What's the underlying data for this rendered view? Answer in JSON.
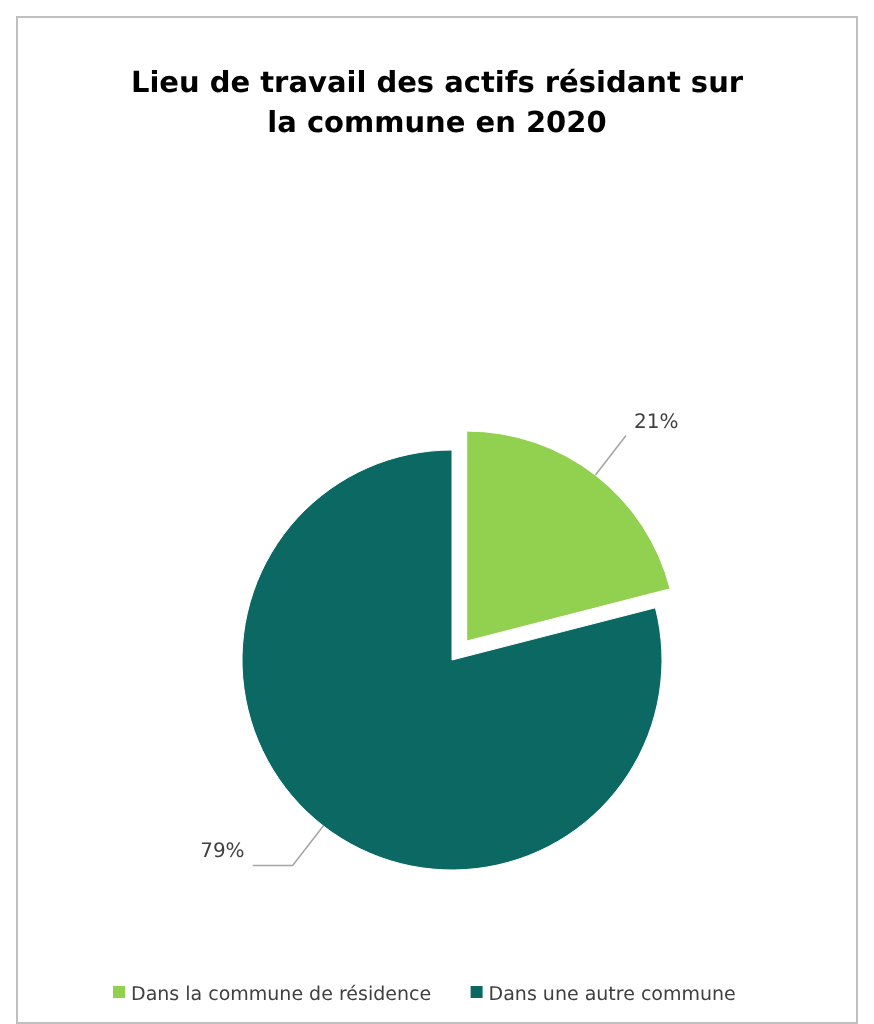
{
  "chart_data": {
    "type": "pie",
    "title": "Lieu de travail des actifs résidant sur la commune en 2020",
    "categories": [
      "Dans la commune de résidence",
      "Dans une autre commune"
    ],
    "values": [
      21,
      79
    ],
    "colors": [
      "#92d050",
      "#0b6862"
    ],
    "value_labels": [
      "21%",
      "79%"
    ],
    "legend": "bottom"
  }
}
